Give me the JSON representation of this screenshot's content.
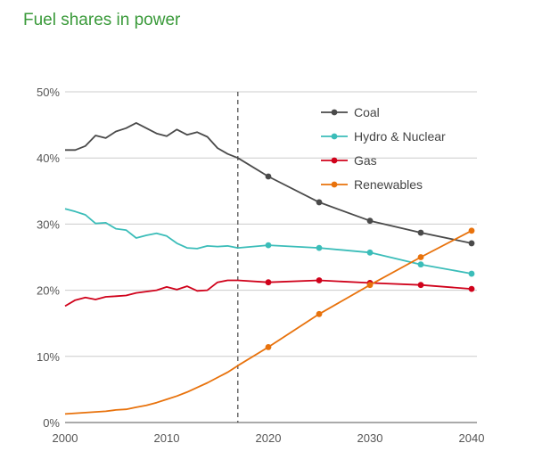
{
  "chart_data": {
    "type": "line",
    "title": "Fuel shares in power",
    "xlabel": "",
    "ylabel": "",
    "xlim": [
      2000,
      2040
    ],
    "ylim": [
      0,
      50
    ],
    "x_ticks": [
      "2000",
      "2010",
      "2020",
      "2030",
      "2040"
    ],
    "y_ticks": [
      "0%",
      "10%",
      "20%",
      "30%",
      "40%",
      "50%"
    ],
    "grid": "horizontal",
    "legend_position": "top-right",
    "reference_line_x": 2017,
    "series": [
      {
        "name": "Coal",
        "color": "#4a4a4a",
        "history": [
          [
            2000,
            41.2
          ],
          [
            2001,
            41.2
          ],
          [
            2002,
            41.8
          ],
          [
            2003,
            43.4
          ],
          [
            2004,
            43.0
          ],
          [
            2005,
            44.0
          ],
          [
            2006,
            44.5
          ],
          [
            2007,
            45.3
          ],
          [
            2008,
            44.5
          ],
          [
            2009,
            43.7
          ],
          [
            2010,
            43.3
          ],
          [
            2011,
            44.3
          ],
          [
            2012,
            43.5
          ],
          [
            2013,
            43.9
          ],
          [
            2014,
            43.2
          ],
          [
            2015,
            41.5
          ],
          [
            2016,
            40.6
          ],
          [
            2017,
            40.0
          ]
        ],
        "projection": [
          [
            2017,
            40.0
          ],
          [
            2020,
            37.2
          ],
          [
            2025,
            33.3
          ],
          [
            2030,
            30.5
          ],
          [
            2035,
            28.7
          ],
          [
            2040,
            27.1
          ]
        ],
        "markers": [
          [
            2020,
            37.2
          ],
          [
            2025,
            33.3
          ],
          [
            2030,
            30.5
          ],
          [
            2035,
            28.7
          ],
          [
            2040,
            27.1
          ]
        ]
      },
      {
        "name": "Hydro & Nuclear",
        "color": "#3bbdb9",
        "history": [
          [
            2000,
            32.3
          ],
          [
            2001,
            31.9
          ],
          [
            2002,
            31.4
          ],
          [
            2003,
            30.1
          ],
          [
            2004,
            30.2
          ],
          [
            2005,
            29.3
          ],
          [
            2006,
            29.1
          ],
          [
            2007,
            27.9
          ],
          [
            2008,
            28.3
          ],
          [
            2009,
            28.6
          ],
          [
            2010,
            28.2
          ],
          [
            2011,
            27.1
          ],
          [
            2012,
            26.4
          ],
          [
            2013,
            26.3
          ],
          [
            2014,
            26.7
          ],
          [
            2015,
            26.6
          ],
          [
            2016,
            26.7
          ],
          [
            2017,
            26.4
          ]
        ],
        "projection": [
          [
            2017,
            26.4
          ],
          [
            2020,
            26.8
          ],
          [
            2025,
            26.4
          ],
          [
            2030,
            25.7
          ],
          [
            2035,
            23.9
          ],
          [
            2040,
            22.5
          ]
        ],
        "markers": [
          [
            2020,
            26.8
          ],
          [
            2025,
            26.4
          ],
          [
            2030,
            25.7
          ],
          [
            2035,
            23.9
          ],
          [
            2040,
            22.5
          ]
        ]
      },
      {
        "name": "Gas",
        "color": "#d0021b",
        "history": [
          [
            2000,
            17.6
          ],
          [
            2001,
            18.5
          ],
          [
            2002,
            18.9
          ],
          [
            2003,
            18.6
          ],
          [
            2004,
            19.0
          ],
          [
            2005,
            19.1
          ],
          [
            2006,
            19.2
          ],
          [
            2007,
            19.6
          ],
          [
            2008,
            19.8
          ],
          [
            2009,
            20.0
          ],
          [
            2010,
            20.5
          ],
          [
            2011,
            20.1
          ],
          [
            2012,
            20.6
          ],
          [
            2013,
            19.9
          ],
          [
            2014,
            20.0
          ],
          [
            2015,
            21.2
          ],
          [
            2016,
            21.5
          ],
          [
            2017,
            21.5
          ]
        ],
        "projection": [
          [
            2017,
            21.5
          ],
          [
            2020,
            21.2
          ],
          [
            2025,
            21.5
          ],
          [
            2030,
            21.1
          ],
          [
            2035,
            20.8
          ],
          [
            2040,
            20.2
          ]
        ],
        "markers": [
          [
            2020,
            21.2
          ],
          [
            2025,
            21.5
          ],
          [
            2030,
            21.1
          ],
          [
            2035,
            20.8
          ],
          [
            2040,
            20.2
          ]
        ]
      },
      {
        "name": "Renewables",
        "color": "#e8720c",
        "history": [
          [
            2000,
            1.3
          ],
          [
            2001,
            1.4
          ],
          [
            2002,
            1.5
          ],
          [
            2003,
            1.6
          ],
          [
            2004,
            1.7
          ],
          [
            2005,
            1.9
          ],
          [
            2006,
            2.0
          ],
          [
            2007,
            2.3
          ],
          [
            2008,
            2.6
          ],
          [
            2009,
            3.0
          ],
          [
            2010,
            3.5
          ],
          [
            2011,
            4.0
          ],
          [
            2012,
            4.6
          ],
          [
            2013,
            5.3
          ],
          [
            2014,
            6.0
          ],
          [
            2015,
            6.8
          ],
          [
            2016,
            7.6
          ],
          [
            2017,
            8.6
          ]
        ],
        "projection": [
          [
            2017,
            8.6
          ],
          [
            2020,
            11.4
          ],
          [
            2025,
            16.4
          ],
          [
            2030,
            20.8
          ],
          [
            2035,
            25.0
          ],
          [
            2040,
            29.0
          ]
        ],
        "markers": [
          [
            2020,
            11.4
          ],
          [
            2025,
            16.4
          ],
          [
            2030,
            20.8
          ],
          [
            2035,
            25.0
          ],
          [
            2040,
            29.0
          ]
        ]
      }
    ]
  }
}
